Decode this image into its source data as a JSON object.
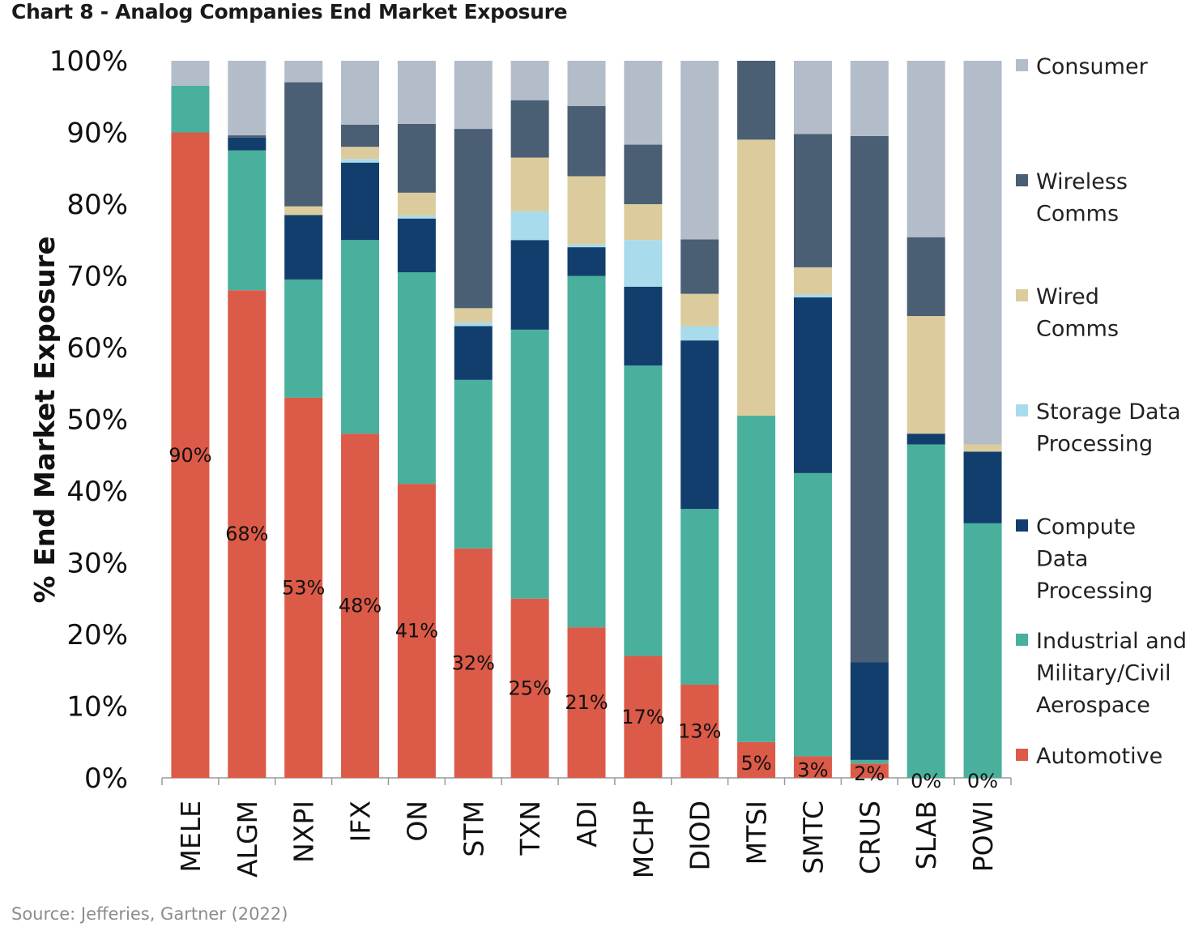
{
  "title": "Chart 8 - Analog Companies End Market Exposure",
  "source": "Source: Jefferies, Gartner (2022)",
  "chart_data": {
    "type": "bar",
    "stacked": true,
    "title": "Chart 8 - Analog Companies End Market Exposure",
    "xlabel": "",
    "ylabel": "% End Market Exposure",
    "ylim": [
      0,
      100
    ],
    "yticks": [
      "0%",
      "10%",
      "20%",
      "30%",
      "40%",
      "50%",
      "60%",
      "70%",
      "80%",
      "90%",
      "100%"
    ],
    "categories": [
      "MELE",
      "ALGM",
      "NXPI",
      "IFX",
      "ON",
      "STM",
      "TXN",
      "ADI",
      "MCHP",
      "DIOD",
      "MTSI",
      "SMTC",
      "CRUS",
      "SLAB",
      "POWI"
    ],
    "series": [
      {
        "name": "Automotive",
        "color": "#dc5a48",
        "values": [
          90,
          68,
          53,
          48,
          41,
          32,
          25,
          21,
          17,
          13,
          5,
          3,
          2,
          0,
          0
        ]
      },
      {
        "name": "Industrial and Military/Civil Aerospace",
        "color": "#48b09c",
        "values": [
          6.5,
          19.5,
          16.5,
          27,
          29.5,
          23.5,
          37.5,
          49,
          40.5,
          24.5,
          45.5,
          39.5,
          0.5,
          46.5,
          35.5
        ]
      },
      {
        "name": "Compute Data Processing",
        "color": "#123e6e",
        "values": [
          0,
          1.8,
          9,
          10.8,
          7.5,
          7.5,
          12.5,
          4,
          11,
          23.5,
          0,
          24.5,
          13.6,
          1.5,
          10
        ]
      },
      {
        "name": "Storage Data Processing",
        "color": "#a8dbeb",
        "values": [
          0,
          0,
          0,
          0.5,
          0.4,
          0.5,
          4,
          0.4,
          6.5,
          2,
          0,
          0.4,
          0,
          0,
          0
        ]
      },
      {
        "name": "Wired Comms",
        "color": "#dccc9d",
        "values": [
          0,
          0,
          1.2,
          1.7,
          3.2,
          2,
          7.5,
          9.5,
          5,
          4.5,
          38.5,
          3.8,
          0,
          16.4,
          1
        ]
      },
      {
        "name": "Wireless Comms",
        "color": "#4a5e74",
        "values": [
          0,
          0.3,
          17.3,
          3.1,
          9.6,
          25,
          8,
          9.8,
          8.3,
          7.6,
          11,
          18.6,
          73.4,
          11,
          0
        ]
      },
      {
        "name": "Consumer",
        "color": "#b3bcc9",
        "values": [
          3.5,
          10.4,
          3,
          8.9,
          8.8,
          9.5,
          5.5,
          6.3,
          11.7,
          24.9,
          0,
          10.2,
          10.5,
          24.6,
          53.5
        ]
      }
    ],
    "data_labels": [
      "90%",
      "68%",
      "53%",
      "48%",
      "41%",
      "32%",
      "25%",
      "21%",
      "17%",
      "13%",
      "5%",
      "3%",
      "2%",
      "0%",
      "0%"
    ],
    "legend": {
      "position": "right",
      "items": [
        {
          "label_lines": [
            "Consumer"
          ],
          "color": "#b3bcc9"
        },
        {
          "label_lines": [
            "Wireless",
            "Comms"
          ],
          "color": "#4a5e74"
        },
        {
          "label_lines": [
            "Wired",
            "Comms"
          ],
          "color": "#dccc9d"
        },
        {
          "label_lines": [
            "Storage Data",
            "Processing"
          ],
          "color": "#a8dbeb"
        },
        {
          "label_lines": [
            "Compute",
            "Data",
            "Processing"
          ],
          "color": "#123e6e"
        },
        {
          "label_lines": [
            "Industrial and",
            "Military/Civil",
            "Aerospace"
          ],
          "color": "#48b09c"
        },
        {
          "label_lines": [
            "Automotive"
          ],
          "color": "#dc5a48"
        }
      ]
    }
  }
}
